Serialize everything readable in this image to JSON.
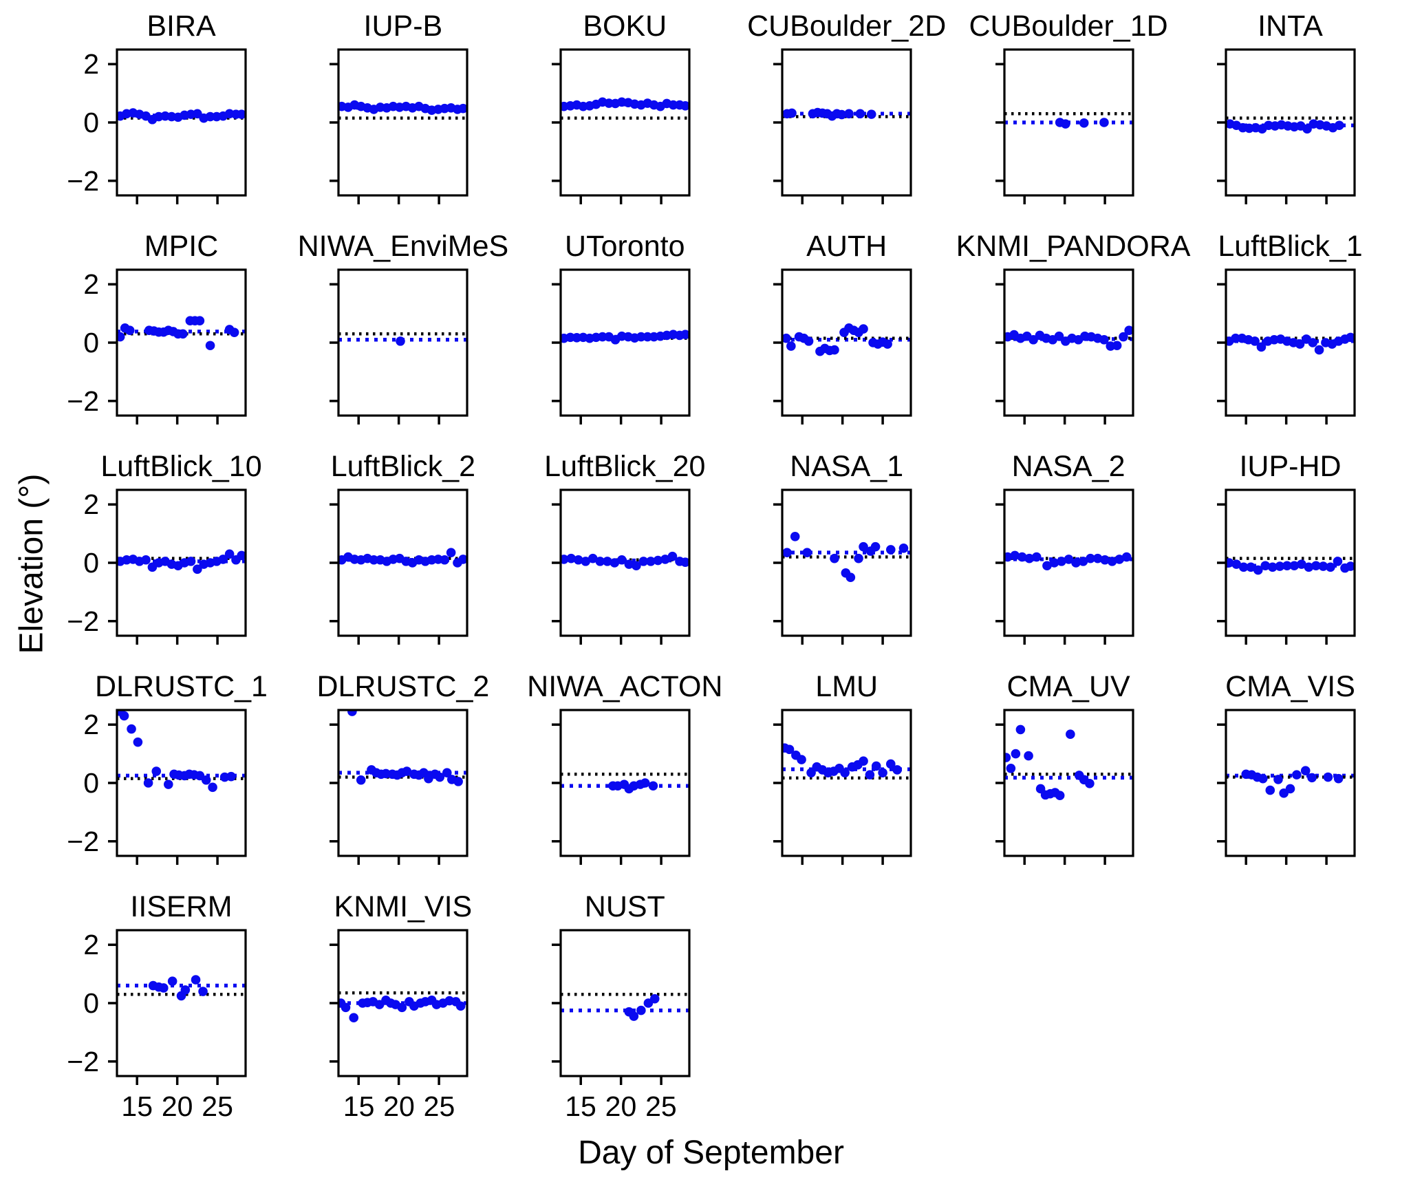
{
  "figure": {
    "ylabel": "Elevation (°)",
    "xlabel": "Day of September",
    "xlim": [
      12.5,
      28.5
    ],
    "ylim": [
      -2.5,
      2.5
    ],
    "xticks": [
      15,
      20,
      25
    ],
    "ytick_labels": [
      "2",
      "0",
      "−2"
    ],
    "ytick_values": [
      2,
      0,
      -2
    ],
    "marker_color": "#0a0af0",
    "blue_line_color": "#0a0af0",
    "black_line_color": "#000000",
    "grid": {
      "rows": 5,
      "cols": 6,
      "num_panels": 27
    }
  },
  "chart_data": [
    {
      "type": "scatter",
      "title": "BIRA",
      "x": [
        12.9,
        13.7,
        14.5,
        15.3,
        16.1,
        16.9,
        17.7,
        18.5,
        19.3,
        20.1,
        20.9,
        21.7,
        22.5,
        23.3,
        24.1,
        24.9,
        25.7,
        26.5,
        27.3,
        28.0
      ],
      "y": [
        0.22,
        0.3,
        0.33,
        0.28,
        0.22,
        0.1,
        0.2,
        0.22,
        0.2,
        0.18,
        0.25,
        0.28,
        0.3,
        0.15,
        0.2,
        0.2,
        0.22,
        0.3,
        0.28,
        0.28
      ],
      "ref_black": 0.15,
      "ref_blue": 0.24
    },
    {
      "type": "scatter",
      "title": "IUP-B",
      "x": [
        12.9,
        13.7,
        14.5,
        15.3,
        16.1,
        16.9,
        17.7,
        18.5,
        19.3,
        20.1,
        20.9,
        21.7,
        22.5,
        23.3,
        24.1,
        24.9,
        25.7,
        26.5,
        27.3,
        28.0
      ],
      "y": [
        0.55,
        0.52,
        0.6,
        0.55,
        0.5,
        0.45,
        0.52,
        0.5,
        0.55,
        0.52,
        0.55,
        0.5,
        0.55,
        0.48,
        0.42,
        0.45,
        0.48,
        0.5,
        0.45,
        0.48
      ],
      "ref_black": 0.15,
      "ref_blue": 0.5
    },
    {
      "type": "scatter",
      "title": "BOKU",
      "x": [
        12.9,
        13.7,
        14.5,
        15.3,
        16.1,
        16.9,
        17.7,
        18.5,
        19.3,
        20.1,
        20.9,
        21.7,
        22.5,
        23.3,
        24.1,
        24.9,
        25.7,
        26.5,
        27.3,
        28.0
      ],
      "y": [
        0.55,
        0.57,
        0.6,
        0.55,
        0.57,
        0.62,
        0.7,
        0.66,
        0.65,
        0.7,
        0.68,
        0.63,
        0.6,
        0.66,
        0.6,
        0.55,
        0.65,
        0.6,
        0.6,
        0.57
      ],
      "ref_black": 0.15,
      "ref_blue": 0.62
    },
    {
      "type": "scatter",
      "title": "CUBoulder_2D",
      "x": [
        13.1,
        13.7,
        16.3,
        16.9,
        17.5,
        18.1,
        18.7,
        19.3,
        19.9,
        20.8,
        22.2,
        23.6
      ],
      "y": [
        0.3,
        0.32,
        0.3,
        0.34,
        0.32,
        0.3,
        0.22,
        0.3,
        0.27,
        0.3,
        0.3,
        0.28
      ],
      "ref_black": 0.2,
      "ref_blue": 0.3
    },
    {
      "type": "scatter",
      "title": "CUBoulder_1D",
      "x": [
        19.4,
        20.1,
        22.4,
        24.9
      ],
      "y": [
        0.0,
        -0.05,
        -0.02,
        0.0
      ],
      "ref_black": 0.3,
      "ref_blue": 0.0
    },
    {
      "type": "scatter",
      "title": "INTA",
      "x": [
        13,
        13.8,
        14.6,
        15.4,
        16.2,
        17,
        17.8,
        18.6,
        19.4,
        20.2,
        21,
        21.8,
        22.6,
        23.4,
        24.2,
        25,
        25.8,
        26.6
      ],
      "y": [
        -0.05,
        -0.1,
        -0.18,
        -0.2,
        -0.18,
        -0.22,
        -0.1,
        -0.12,
        -0.08,
        -0.12,
        -0.15,
        -0.12,
        -0.22,
        -0.05,
        -0.08,
        -0.12,
        -0.18,
        -0.1
      ],
      "ref_black": 0.15,
      "ref_blue": -0.1
    },
    {
      "type": "scatter",
      "title": "MPIC",
      "x": [
        12.9,
        13.5,
        14.1,
        16.5,
        17.1,
        17.7,
        18.3,
        18.9,
        19.5,
        20.1,
        20.7,
        21.6,
        22.2,
        22.8,
        24.1,
        26.5,
        27.1
      ],
      "y": [
        0.2,
        0.5,
        0.42,
        0.42,
        0.4,
        0.36,
        0.36,
        0.42,
        0.38,
        0.3,
        0.3,
        0.75,
        0.75,
        0.75,
        -0.1,
        0.45,
        0.35
      ],
      "ref_black": 0.3,
      "ref_blue": 0.38
    },
    {
      "type": "scatter",
      "title": "NIWA_EnviMeS",
      "x": [
        20.2
      ],
      "y": [
        0.05
      ],
      "ref_black": 0.3,
      "ref_blue": 0.1
    },
    {
      "type": "scatter",
      "title": "UToronto",
      "x": [
        12.9,
        13.7,
        14.5,
        15.3,
        16.1,
        16.9,
        17.7,
        18.5,
        19.3,
        20.1,
        20.9,
        21.7,
        22.5,
        23.3,
        24.1,
        24.9,
        25.7,
        26.5,
        27.3,
        28.0
      ],
      "y": [
        0.15,
        0.18,
        0.17,
        0.18,
        0.15,
        0.18,
        0.2,
        0.2,
        0.1,
        0.22,
        0.2,
        0.16,
        0.2,
        0.2,
        0.2,
        0.22,
        0.25,
        0.28,
        0.25,
        0.28
      ],
      "ref_black": 0.15,
      "ref_blue": 0.2
    },
    {
      "type": "scatter",
      "title": "AUTH",
      "x": [
        13,
        13.6,
        14.6,
        15.2,
        15.8,
        17.2,
        17.8,
        18.4,
        19,
        20.2,
        20.8,
        21.4,
        22,
        22.6,
        23.8,
        24.4,
        25,
        25.6
      ],
      "y": [
        0.15,
        -0.12,
        0.2,
        0.15,
        0.05,
        -0.3,
        -0.2,
        -0.27,
        -0.25,
        0.35,
        0.5,
        0.42,
        0.35,
        0.47,
        0.0,
        -0.05,
        0.02,
        -0.05
      ],
      "ref_black": 0.15,
      "ref_blue": 0.1
    },
    {
      "type": "scatter",
      "title": "KNMI_PANDORA",
      "x": [
        12.9,
        13.7,
        14.5,
        15.3,
        16.1,
        16.9,
        17.7,
        18.5,
        19.3,
        20.1,
        20.9,
        21.7,
        22.5,
        23.3,
        24.1,
        24.9,
        25.7,
        26.5,
        27.3,
        28.0
      ],
      "y": [
        0.2,
        0.27,
        0.15,
        0.22,
        0.1,
        0.25,
        0.15,
        0.1,
        0.22,
        0.05,
        0.15,
        0.1,
        0.22,
        0.2,
        0.15,
        0.1,
        -0.12,
        -0.1,
        0.2,
        0.42
      ],
      "ref_black": 0.15,
      "ref_blue": 0.12
    },
    {
      "type": "scatter",
      "title": "LuftBlick_1",
      "x": [
        12.9,
        13.7,
        14.5,
        15.3,
        16.1,
        16.9,
        17.7,
        18.5,
        19.3,
        20.1,
        20.9,
        21.7,
        22.5,
        23.3,
        24.1,
        24.9,
        25.7,
        26.5,
        27.3,
        28.0
      ],
      "y": [
        0.05,
        0.15,
        0.15,
        0.1,
        0.05,
        -0.15,
        0.05,
        0.1,
        0.12,
        0.05,
        0.0,
        -0.05,
        0.12,
        0.0,
        -0.25,
        0.0,
        -0.05,
        0.05,
        0.12,
        0.18
      ],
      "ref_black": 0.15,
      "ref_blue": 0.05
    },
    {
      "type": "scatter",
      "title": "LuftBlick_10",
      "x": [
        12.9,
        13.7,
        14.5,
        15.3,
        16.1,
        16.9,
        17.7,
        18.5,
        19.3,
        20.1,
        20.9,
        21.7,
        22.5,
        23.3,
        24.1,
        24.9,
        25.7,
        26.5,
        27.3,
        28.0
      ],
      "y": [
        0.05,
        0.1,
        0.12,
        0.05,
        0.1,
        -0.15,
        0.0,
        0.05,
        -0.05,
        -0.1,
        0.0,
        0.05,
        -0.22,
        -0.05,
        0.0,
        0.05,
        0.12,
        0.3,
        0.1,
        0.25
      ],
      "ref_black": 0.15,
      "ref_blue": 0.05
    },
    {
      "type": "scatter",
      "title": "LuftBlick_2",
      "x": [
        12.9,
        13.7,
        14.5,
        15.3,
        16.1,
        16.9,
        17.7,
        18.5,
        19.3,
        20.1,
        20.9,
        21.7,
        22.5,
        23.3,
        24.1,
        24.9,
        25.7,
        26.5,
        27.3,
        28.0
      ],
      "y": [
        0.1,
        0.2,
        0.12,
        0.1,
        0.15,
        0.1,
        0.1,
        0.05,
        0.12,
        0.15,
        0.05,
        0.0,
        0.1,
        0.05,
        0.1,
        0.12,
        0.1,
        0.35,
        0.0,
        0.12
      ],
      "ref_black": 0.15,
      "ref_blue": 0.1
    },
    {
      "type": "scatter",
      "title": "LuftBlick_20",
      "x": [
        12.9,
        13.8,
        14.7,
        15.6,
        16.5,
        17.4,
        18.3,
        19.2,
        20.1,
        21,
        21.9,
        22.8,
        23.7,
        24.6,
        25.5,
        26.4,
        27.3,
        28.0
      ],
      "y": [
        0.12,
        0.15,
        0.1,
        0.05,
        0.15,
        0.05,
        0.05,
        0.0,
        0.1,
        -0.05,
        -0.1,
        0.05,
        0.05,
        0.08,
        0.12,
        0.22,
        0.05,
        0.02
      ],
      "ref_black": 0.1,
      "ref_blue": 0.08
    },
    {
      "type": "scatter",
      "title": "NASA_1",
      "x": [
        13.1,
        14.1,
        15.6,
        19,
        20.4,
        21,
        22,
        22.6,
        23.5,
        24.1,
        26,
        27.6
      ],
      "y": [
        0.35,
        0.9,
        0.35,
        0.15,
        -0.35,
        -0.5,
        0.15,
        0.55,
        0.4,
        0.55,
        0.45,
        0.5
      ],
      "ref_black": 0.2,
      "ref_blue": 0.35
    },
    {
      "type": "scatter",
      "title": "NASA_2",
      "x": [
        12.9,
        13.8,
        14.7,
        15.6,
        16.5,
        17.8,
        18.7,
        19.6,
        20.5,
        21.4,
        22.3,
        23.2,
        24.1,
        25,
        25.9,
        26.8,
        27.7
      ],
      "y": [
        0.2,
        0.25,
        0.2,
        0.15,
        0.2,
        -0.1,
        0.0,
        0.05,
        0.12,
        0.0,
        0.05,
        0.15,
        0.15,
        0.1,
        0.05,
        0.12,
        0.2
      ],
      "ref_black": 0.15,
      "ref_blue": 0.12
    },
    {
      "type": "scatter",
      "title": "IUP-HD",
      "x": [
        12.9,
        13.8,
        14.7,
        15.6,
        16.5,
        17.4,
        18.3,
        19.2,
        20.1,
        21,
        21.9,
        22.8,
        23.7,
        24.6,
        25.5,
        26.4,
        27.3,
        28.0
      ],
      "y": [
        0.0,
        -0.05,
        -0.15,
        -0.15,
        -0.25,
        -0.1,
        -0.15,
        -0.12,
        -0.1,
        -0.1,
        -0.05,
        -0.15,
        -0.1,
        -0.12,
        -0.15,
        0.05,
        -0.18,
        -0.12
      ],
      "ref_black": 0.15,
      "ref_blue": -0.1
    },
    {
      "type": "scatter",
      "title": "DLRUSTC_1",
      "x": [
        12.9,
        13.4,
        14.3,
        15.1,
        16.4,
        17.4,
        18.9,
        19.6,
        20.2,
        20.9,
        21.5,
        22.1,
        22.8,
        23.6,
        24.4,
        25.9,
        26.7
      ],
      "y": [
        2.45,
        2.3,
        1.85,
        1.4,
        0.0,
        0.4,
        -0.05,
        0.3,
        0.27,
        0.25,
        0.3,
        0.28,
        0.25,
        0.1,
        -0.15,
        0.2,
        0.22
      ],
      "ref_black": 0.15,
      "ref_blue": 0.25
    },
    {
      "type": "scatter",
      "title": "DLRUSTC_2",
      "x": [
        14.2,
        15.3,
        16.6,
        17.2,
        17.8,
        18.4,
        19.2,
        19.8,
        20.4,
        21,
        21.9,
        22.5,
        23.1,
        23.7,
        24.5,
        25.1,
        26,
        26.6,
        27.4
      ],
      "y": [
        2.45,
        0.1,
        0.45,
        0.35,
        0.3,
        0.32,
        0.3,
        0.27,
        0.35,
        0.4,
        0.3,
        0.27,
        0.35,
        0.15,
        0.3,
        0.2,
        0.35,
        0.12,
        0.05
      ],
      "ref_black": 0.2,
      "ref_blue": 0.35
    },
    {
      "type": "scatter",
      "title": "NIWA_ACTON",
      "x": [
        19,
        19.6,
        20.4,
        21,
        21.6,
        22.4,
        23,
        24
      ],
      "y": [
        -0.1,
        -0.1,
        -0.05,
        -0.2,
        -0.1,
        -0.05,
        0.0,
        -0.1
      ],
      "ref_black": 0.3,
      "ref_blue": -0.1
    },
    {
      "type": "scatter",
      "title": "LMU",
      "x": [
        12.8,
        13.4,
        14.2,
        14.9,
        16.1,
        16.8,
        17.5,
        18.2,
        18.9,
        19.6,
        20.3,
        21.2,
        21.9,
        22.6,
        23.4,
        24.2,
        25,
        26,
        26.8
      ],
      "y": [
        1.2,
        1.15,
        0.95,
        0.8,
        0.35,
        0.55,
        0.45,
        0.35,
        0.4,
        0.5,
        0.35,
        0.55,
        0.62,
        0.75,
        0.28,
        0.58,
        0.35,
        0.65,
        0.45
      ],
      "ref_black": 0.17,
      "ref_blue": 0.47
    },
    {
      "type": "scatter",
      "title": "CMA_UV",
      "x": [
        12.7,
        13.3,
        13.9,
        14.5,
        15.5,
        17,
        17.6,
        18.2,
        18.8,
        19.4,
        20.7,
        21.8,
        22.4,
        23.1
      ],
      "y": [
        0.87,
        0.5,
        1.0,
        1.83,
        0.93,
        -0.2,
        -0.41,
        -0.37,
        -0.33,
        -0.43,
        1.67,
        0.26,
        0.11,
        -0.02
      ],
      "ref_black": 0.3,
      "ref_blue": 0.18
    },
    {
      "type": "scatter",
      "title": "CMA_VIS",
      "x": [
        15,
        15.7,
        16.4,
        17.1,
        18,
        19,
        19.7,
        20.5,
        21.3,
        22.4,
        23.2,
        25.2,
        26.5
      ],
      "y": [
        0.3,
        0.28,
        0.2,
        0.15,
        -0.25,
        0.12,
        -0.35,
        -0.2,
        0.28,
        0.42,
        0.18,
        0.2,
        0.15
      ],
      "ref_black": 0.2,
      "ref_blue": 0.25
    },
    {
      "type": "scatter",
      "title": "IISERM",
      "x": [
        17,
        17.7,
        18.3,
        19.4,
        20.5,
        21,
        22.3,
        23.2
      ],
      "y": [
        0.6,
        0.55,
        0.52,
        0.75,
        0.25,
        0.45,
        0.8,
        0.4
      ],
      "ref_black": 0.3,
      "ref_blue": 0.6
    },
    {
      "type": "scatter",
      "title": "KNMI_VIS",
      "x": [
        12.8,
        13.4,
        14.4,
        15.5,
        16.1,
        16.8,
        17.6,
        18.4,
        19,
        19.6,
        20.4,
        21.3,
        21.9,
        22.7,
        23.3,
        24.1,
        24.7,
        25.5,
        26.3,
        27.1,
        27.7
      ],
      "y": [
        0.0,
        -0.15,
        -0.5,
        0.0,
        0.02,
        0.05,
        -0.05,
        0.1,
        0.0,
        -0.05,
        -0.15,
        0.05,
        -0.1,
        0.0,
        0.05,
        0.1,
        -0.05,
        0.0,
        0.08,
        0.05,
        -0.1
      ],
      "ref_black": 0.35,
      "ref_blue": 0.0
    },
    {
      "type": "scatter",
      "title": "NUST",
      "x": [
        21,
        21.6,
        22.5,
        23.4,
        24.2
      ],
      "y": [
        -0.3,
        -0.45,
        -0.25,
        0.0,
        0.15
      ],
      "ref_black": 0.3,
      "ref_blue": -0.25
    }
  ]
}
